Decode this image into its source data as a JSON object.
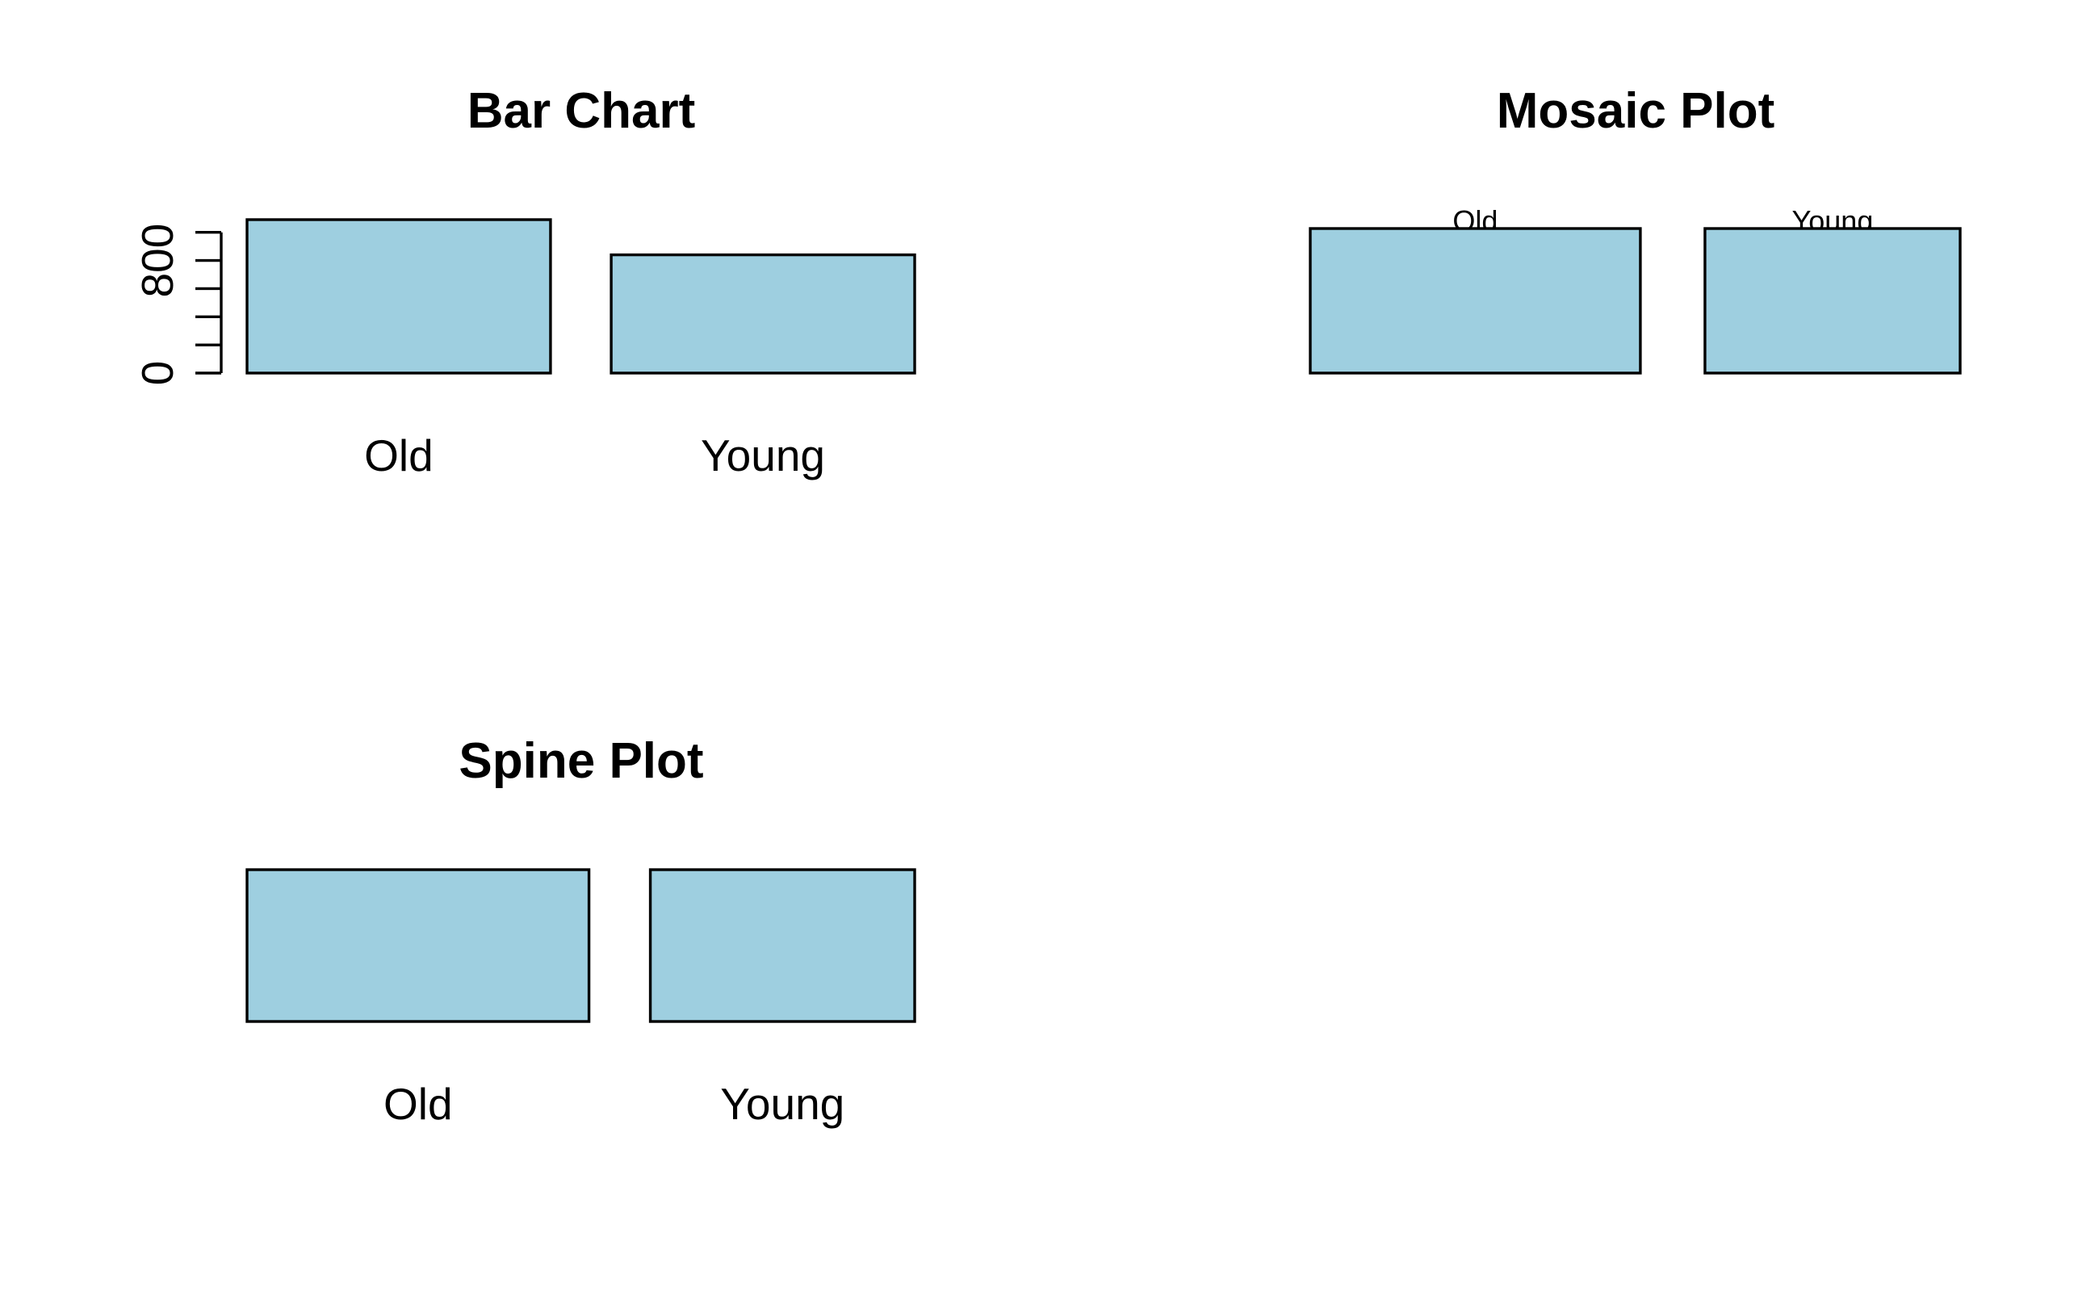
{
  "chart_data": [
    {
      "type": "bar",
      "panel": "top-left",
      "title": "Bar Chart",
      "categories": [
        "Old",
        "Young"
      ],
      "values": [
        1090,
        840
      ],
      "ylim": [
        0,
        1090
      ],
      "y_tick_labels": [
        {
          "value": 0,
          "label": "0"
        },
        {
          "value": 800,
          "label": "800"
        }
      ],
      "y_minor_ticks": [
        0,
        200,
        400,
        600,
        800,
        1000
      ],
      "bar_color": "#9ecfe0",
      "xlabel": "",
      "ylabel": "",
      "grid": false
    },
    {
      "type": "bar",
      "panel": "top-right",
      "title": "Mosaic Plot",
      "categories": [
        "Old",
        "Young"
      ],
      "proportions": [
        0.564,
        0.436
      ],
      "bar_color": "#9ecfe0",
      "grid": false
    },
    {
      "type": "bar",
      "panel": "bottom-left",
      "title": "Spine Plot",
      "categories": [
        "Old",
        "Young"
      ],
      "proportions": [
        0.564,
        0.436
      ],
      "bar_color": "#9ecfe0",
      "grid": false
    }
  ]
}
